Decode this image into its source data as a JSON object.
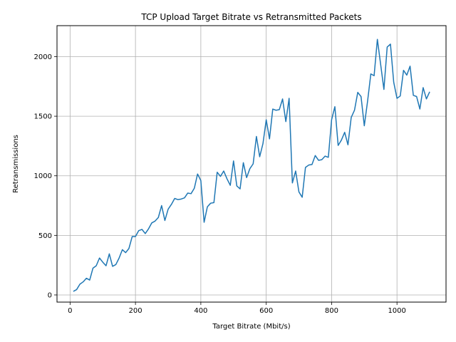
{
  "chart_data": {
    "type": "line",
    "title": "TCP Upload Target Bitrate vs Retransmitted Packets",
    "xlabel": "Target Bitrate (Mbit/s)",
    "ylabel": "Retransmissions",
    "xlim": [
      -40,
      1150
    ],
    "ylim": [
      -60,
      2260
    ],
    "xticks": [
      0,
      200,
      400,
      600,
      800,
      1000
    ],
    "yticks": [
      0,
      500,
      1000,
      1500,
      2000
    ],
    "grid": true,
    "series": [
      {
        "color": "#1f77b4",
        "x": [
          10,
          20,
          30,
          40,
          50,
          60,
          70,
          80,
          90,
          100,
          110,
          120,
          130,
          140,
          150,
          160,
          170,
          180,
          190,
          200,
          210,
          220,
          230,
          240,
          250,
          260,
          270,
          280,
          290,
          300,
          310,
          320,
          330,
          340,
          350,
          360,
          370,
          380,
          390,
          400,
          410,
          420,
          430,
          440,
          450,
          460,
          470,
          480,
          490,
          500,
          510,
          520,
          530,
          540,
          550,
          560,
          570,
          580,
          590,
          600,
          610,
          620,
          630,
          640,
          650,
          660,
          670,
          680,
          690,
          700,
          710,
          720,
          730,
          740,
          750,
          760,
          770,
          780,
          790,
          800,
          810,
          820,
          830,
          840,
          850,
          860,
          870,
          880,
          890,
          900,
          910,
          920,
          930,
          940,
          950,
          960,
          970,
          980,
          990,
          1000,
          1010,
          1020,
          1030,
          1040,
          1050,
          1060,
          1070,
          1080,
          1090,
          1100
        ],
        "y": [
          30,
          45,
          90,
          110,
          140,
          125,
          225,
          245,
          310,
          275,
          245,
          345,
          240,
          255,
          310,
          380,
          355,
          390,
          490,
          490,
          540,
          550,
          515,
          555,
          605,
          620,
          650,
          750,
          625,
          720,
          760,
          810,
          800,
          805,
          815,
          855,
          850,
          895,
          1015,
          960,
          610,
          740,
          770,
          775,
          1030,
          995,
          1040,
          975,
          920,
          1125,
          915,
          890,
          1110,
          985,
          1060,
          1100,
          1330,
          1160,
          1270,
          1470,
          1310,
          1560,
          1550,
          1555,
          1645,
          1455,
          1650,
          940,
          1040,
          865,
          820,
          1070,
          1090,
          1095,
          1170,
          1130,
          1135,
          1165,
          1155,
          1470,
          1580,
          1255,
          1300,
          1365,
          1260,
          1490,
          1550,
          1700,
          1665,
          1420,
          1625,
          1855,
          1840,
          2145,
          1935,
          1725,
          2080,
          2105,
          1785,
          1650,
          1670,
          1885,
          1845,
          1920,
          1675,
          1665,
          1560,
          1740,
          1645,
          1705
        ]
      }
    ]
  }
}
